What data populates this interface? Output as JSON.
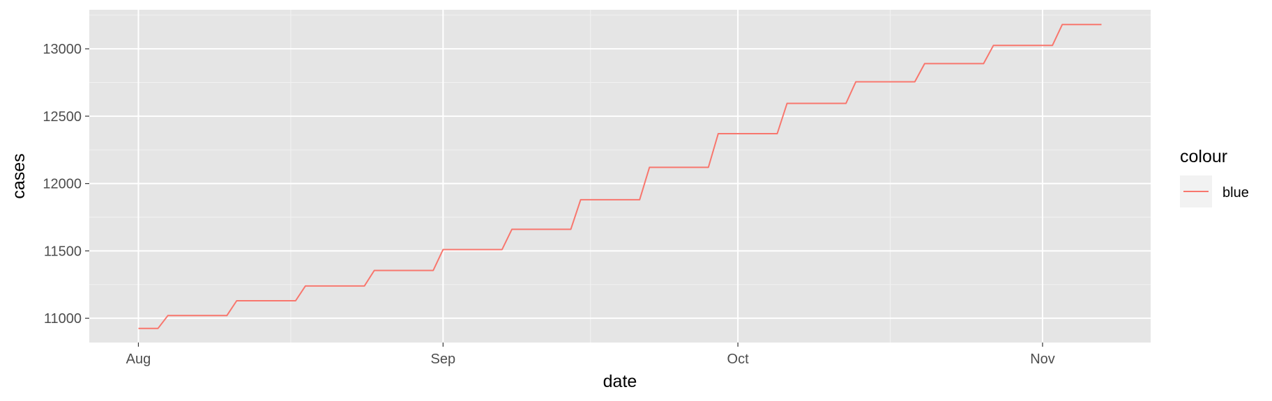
{
  "chart_data": {
    "type": "line",
    "title": "",
    "xlabel": "date",
    "ylabel": "cases",
    "x_ticks": [
      "Aug",
      "Sep",
      "Oct",
      "Nov"
    ],
    "x_tick_dates": [
      "2020-08-01",
      "2020-09-01",
      "2020-10-01",
      "2020-11-01"
    ],
    "xlim": [
      "2020-07-27",
      "2020-11-12"
    ],
    "y_ticks": [
      11000,
      11500,
      12000,
      12500,
      13000
    ],
    "ylim": [
      10820,
      13290
    ],
    "grid": true,
    "background": "#e5e5e5",
    "legend": {
      "title": "colour",
      "position": "right",
      "entries": [
        "blue"
      ]
    },
    "series": [
      {
        "name": "blue",
        "color": "#f8766d",
        "points": [
          [
            "2020-08-01",
            10925
          ],
          [
            "2020-08-03",
            10925
          ],
          [
            "2020-08-04",
            11020
          ],
          [
            "2020-08-10",
            11020
          ],
          [
            "2020-08-11",
            11130
          ],
          [
            "2020-08-17",
            11130
          ],
          [
            "2020-08-18",
            11240
          ],
          [
            "2020-08-24",
            11240
          ],
          [
            "2020-08-25",
            11355
          ],
          [
            "2020-08-31",
            11355
          ],
          [
            "2020-09-01",
            11510
          ],
          [
            "2020-09-07",
            11510
          ],
          [
            "2020-09-08",
            11660
          ],
          [
            "2020-09-14",
            11660
          ],
          [
            "2020-09-15",
            11880
          ],
          [
            "2020-09-21",
            11880
          ],
          [
            "2020-09-22",
            12120
          ],
          [
            "2020-09-28",
            12120
          ],
          [
            "2020-09-29",
            12370
          ],
          [
            "2020-10-05",
            12370
          ],
          [
            "2020-10-06",
            12595
          ],
          [
            "2020-10-12",
            12595
          ],
          [
            "2020-10-13",
            12755
          ],
          [
            "2020-10-19",
            12755
          ],
          [
            "2020-10-20",
            12890
          ],
          [
            "2020-10-26",
            12890
          ],
          [
            "2020-10-27",
            13025
          ],
          [
            "2020-11-02",
            13025
          ],
          [
            "2020-11-03",
            13180
          ],
          [
            "2020-11-07",
            13180
          ]
        ]
      }
    ]
  }
}
